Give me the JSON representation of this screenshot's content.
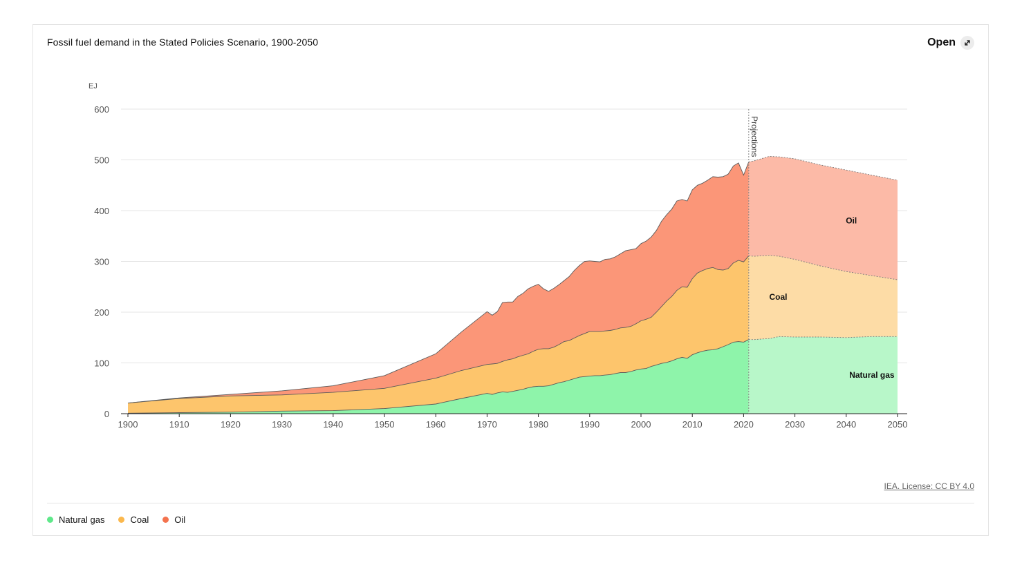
{
  "header": {
    "title": "Fossil fuel demand in the Stated Policies Scenario, 1900-2050",
    "open_label": "Open"
  },
  "footer": {
    "license": "IEA. License: CC BY 4.0"
  },
  "legend": [
    {
      "name": "Natural gas",
      "color": "#5fe88a"
    },
    {
      "name": "Coal",
      "color": "#fbb84d"
    },
    {
      "name": "Oil",
      "color": "#f4734e"
    }
  ],
  "chart_data": {
    "type": "area",
    "stacked": true,
    "title": "Fossil fuel demand in the Stated Policies Scenario, 1900-2050",
    "ylabel": "EJ",
    "xlim": [
      1900,
      2050
    ],
    "ylim": [
      0,
      600
    ],
    "yticks": [
      0,
      100,
      200,
      300,
      400,
      500,
      600
    ],
    "xticks": [
      1900,
      1910,
      1920,
      1930,
      1940,
      1950,
      1960,
      1970,
      1980,
      1990,
      2000,
      2010,
      2020,
      2030,
      2040,
      2050
    ],
    "grid": true,
    "projection_start": 2021,
    "projection_label": "Projections",
    "x": [
      1900,
      1910,
      1920,
      1930,
      1940,
      1950,
      1960,
      1965,
      1970,
      1971,
      1972,
      1973,
      1974,
      1975,
      1976,
      1977,
      1978,
      1979,
      1980,
      1981,
      1982,
      1983,
      1984,
      1985,
      1986,
      1987,
      1988,
      1989,
      1990,
      1991,
      1992,
      1993,
      1994,
      1995,
      1996,
      1997,
      1998,
      1999,
      2000,
      2001,
      2002,
      2003,
      2004,
      2005,
      2006,
      2007,
      2008,
      2009,
      2010,
      2011,
      2012,
      2013,
      2014,
      2015,
      2016,
      2017,
      2018,
      2019,
      2020,
      2021,
      2022,
      2025,
      2027,
      2030,
      2035,
      2040,
      2045,
      2050
    ],
    "series": [
      {
        "name": "Natural gas",
        "color": "#8ef4aa",
        "projection_color": "#b8f7c9",
        "values": [
          1,
          2,
          3,
          5,
          6,
          10,
          19,
          30,
          40,
          38,
          41,
          43,
          42,
          44,
          46,
          48,
          51,
          53,
          54,
          54,
          55,
          58,
          61,
          63,
          66,
          69,
          72,
          73,
          74,
          75,
          75,
          76,
          77,
          79,
          81,
          81,
          83,
          86,
          88,
          89,
          93,
          96,
          99,
          101,
          104,
          108,
          111,
          109,
          116,
          120,
          123,
          125,
          126,
          128,
          132,
          136,
          141,
          142,
          141,
          146,
          146,
          148,
          152,
          151,
          151,
          150,
          152,
          152
        ]
      },
      {
        "name": "Coal",
        "color": "#fdc56c",
        "projection_color": "#fddca6",
        "values": [
          20,
          28,
          32,
          32,
          36,
          40,
          51,
          55,
          57,
          60,
          58,
          60,
          64,
          64,
          66,
          67,
          67,
          70,
          73,
          74,
          73,
          73,
          75,
          79,
          78,
          80,
          82,
          85,
          88,
          87,
          87,
          87,
          87,
          87,
          88,
          89,
          89,
          91,
          95,
          97,
          97,
          104,
          112,
          121,
          127,
          135,
          139,
          140,
          150,
          157,
          159,
          161,
          162,
          156,
          151,
          150,
          156,
          160,
          158,
          165,
          164,
          164,
          158,
          153,
          140,
          130,
          120,
          112
        ]
      },
      {
        "name": "Oil",
        "color": "#fb9678",
        "projection_color": "#fcbaa7",
        "values": [
          0,
          1,
          3,
          8,
          13,
          25,
          48,
          76,
          104,
          96,
          102,
          116,
          114,
          112,
          119,
          122,
          128,
          128,
          128,
          118,
          113,
          116,
          118,
          120,
          126,
          133,
          138,
          142,
          139,
          138,
          137,
          141,
          141,
          143,
          146,
          151,
          151,
          148,
          152,
          154,
          158,
          161,
          168,
          170,
          172,
          176,
          172,
          170,
          175,
          173,
          172,
          174,
          179,
          182,
          184,
          186,
          191,
          192,
          171,
          185,
          188,
          195,
          196,
          198,
          199,
          200,
          198,
          196
        ]
      }
    ],
    "annotations": [
      {
        "series": "Oil",
        "text": "Oil"
      },
      {
        "series": "Coal",
        "text": "Coal"
      },
      {
        "series": "Natural gas",
        "text": "Natural gas"
      }
    ]
  }
}
